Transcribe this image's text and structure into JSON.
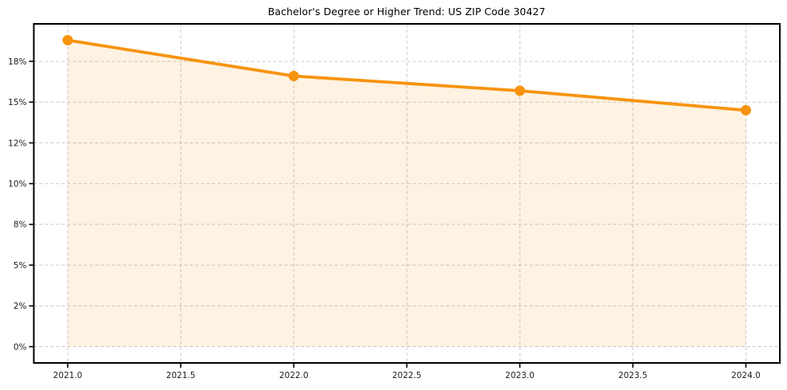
{
  "chart_data": {
    "type": "area",
    "title": "Bachelor's Degree or Higher Trend: US ZIP Code 30427",
    "x": [
      2021,
      2022,
      2023,
      2024
    ],
    "values": [
      18.8,
      16.6,
      15.7,
      14.5
    ],
    "fill_baseline": 0,
    "xlabel": "",
    "ylabel": "",
    "xlim": [
      2020.85,
      2024.15
    ],
    "ylim": [
      -1.0,
      19.8
    ],
    "x_ticks": [
      {
        "value": 2021.0,
        "label": "2021.0"
      },
      {
        "value": 2021.5,
        "label": "2021.5"
      },
      {
        "value": 2022.0,
        "label": "2022.0"
      },
      {
        "value": 2022.5,
        "label": "2022.5"
      },
      {
        "value": 2023.0,
        "label": "2023.0"
      },
      {
        "value": 2023.5,
        "label": "2023.5"
      },
      {
        "value": 2024.0,
        "label": "2024.0"
      }
    ],
    "y_ticks": [
      {
        "value": 0.0,
        "label": "0%"
      },
      {
        "value": 2.5,
        "label": "2%"
      },
      {
        "value": 5.0,
        "label": "5%"
      },
      {
        "value": 7.5,
        "label": "8%"
      },
      {
        "value": 10.0,
        "label": "10%"
      },
      {
        "value": 12.5,
        "label": "12%"
      },
      {
        "value": 15.0,
        "label": "15%"
      },
      {
        "value": 17.5,
        "label": "18%"
      }
    ],
    "grid": true,
    "grid_style": "dashed",
    "legend_visible": false,
    "fill_opacity": 0.12,
    "colors": {
      "line": "#f7930d",
      "marker": "#f7930d",
      "fill": "#f7930d",
      "grid": "#c9c9c9",
      "spine": "#000000",
      "text": "#1c1c1c",
      "background": "#ffffff"
    }
  }
}
